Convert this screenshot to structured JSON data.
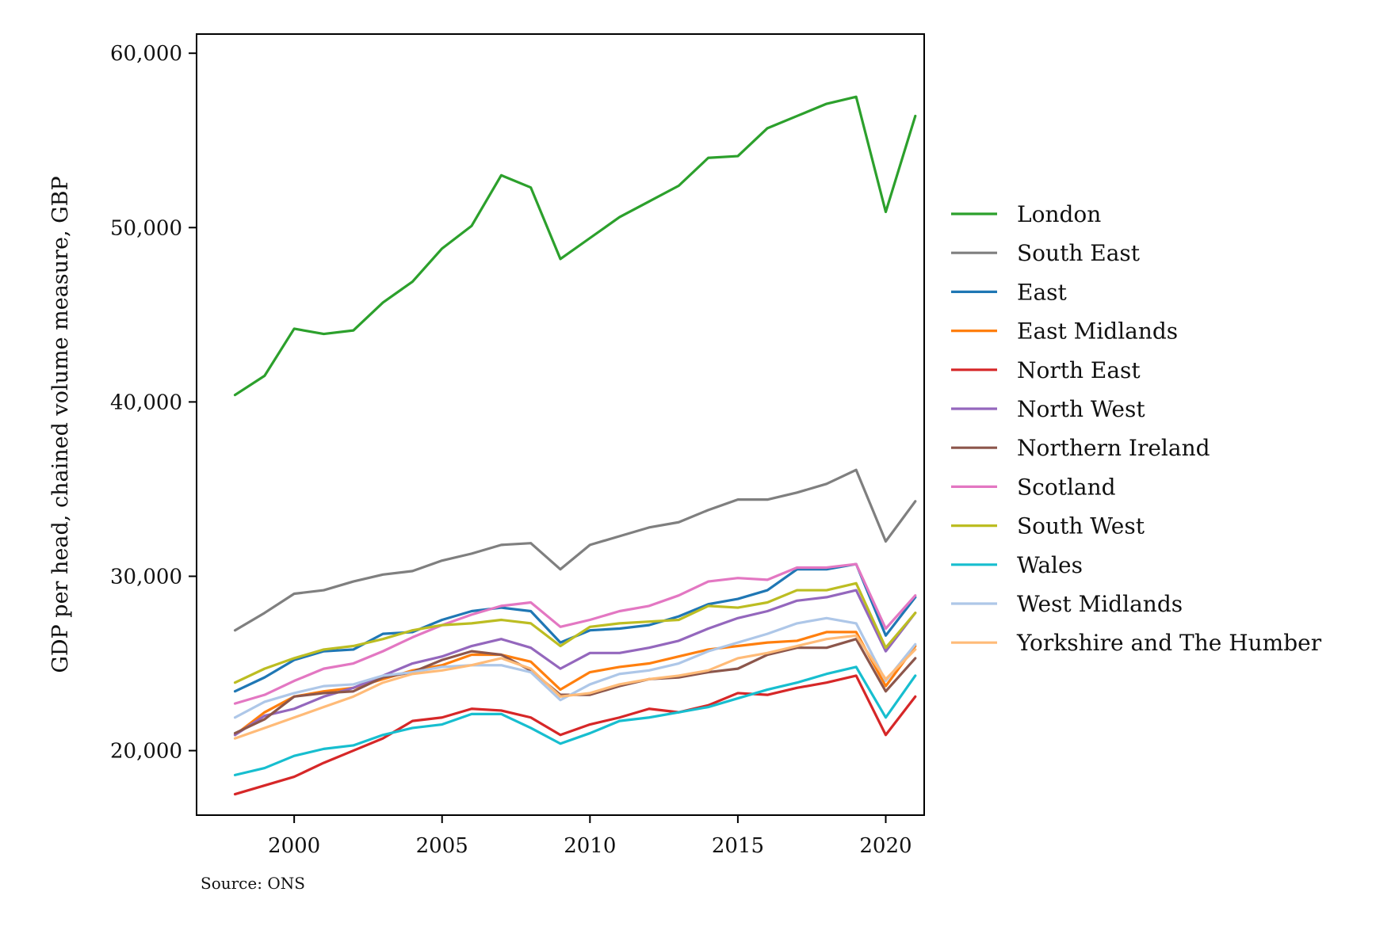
{
  "chart_data": {
    "type": "line",
    "title": "",
    "xlabel": "",
    "ylabel": "GDP per head, chained volume measure, GBP",
    "source": "Source: ONS",
    "x": [
      1998,
      1999,
      2000,
      2001,
      2002,
      2003,
      2004,
      2005,
      2006,
      2007,
      2008,
      2009,
      2010,
      2011,
      2012,
      2013,
      2014,
      2015,
      2016,
      2017,
      2018,
      2019,
      2020,
      2021
    ],
    "xlim": [
      1996.7,
      2021.3
    ],
    "ylim": [
      16300,
      61100
    ],
    "x_ticks": [
      2000,
      2005,
      2010,
      2015,
      2020
    ],
    "x_tick_labels": [
      "2000",
      "2005",
      "2010",
      "2015",
      "2020"
    ],
    "y_ticks": [
      20000,
      30000,
      40000,
      50000,
      60000
    ],
    "y_tick_labels": [
      "20,000",
      "30,000",
      "40,000",
      "50,000",
      "60,000"
    ],
    "grid": false,
    "legend_position": "right",
    "series": [
      {
        "name": "London",
        "color": "#2ca02c",
        "values": [
          40400,
          41500,
          44200,
          43900,
          44100,
          45700,
          46900,
          48800,
          50100,
          53000,
          52300,
          48200,
          49400,
          50600,
          51500,
          52400,
          54000,
          54100,
          55700,
          56400,
          57100,
          57500,
          50900,
          56400
        ]
      },
      {
        "name": "South East",
        "color": "#7f7f7f",
        "values": [
          26900,
          27900,
          29000,
          29200,
          29700,
          30100,
          30300,
          30900,
          31300,
          31800,
          31900,
          30400,
          31800,
          32300,
          32800,
          33100,
          33800,
          34400,
          34400,
          34800,
          35300,
          36100,
          32000,
          34300
        ]
      },
      {
        "name": "East",
        "color": "#1f77b4",
        "values": [
          23400,
          24200,
          25200,
          25700,
          25800,
          26700,
          26800,
          27500,
          28000,
          28200,
          28000,
          26200,
          26900,
          27000,
          27200,
          27700,
          28400,
          28700,
          29200,
          30400,
          30400,
          30700,
          26600,
          28800
        ]
      },
      {
        "name": "East Midlands",
        "color": "#ff7f0e",
        "values": [
          20900,
          22200,
          23100,
          23400,
          23600,
          24100,
          24600,
          24900,
          25500,
          25500,
          25100,
          23500,
          24500,
          24800,
          25000,
          25400,
          25800,
          26000,
          26200,
          26300,
          26800,
          26800,
          23700,
          26000
        ]
      },
      {
        "name": "North East",
        "color": "#d62728",
        "values": [
          17500,
          18000,
          18500,
          19300,
          20000,
          20700,
          21700,
          21900,
          22400,
          22300,
          21900,
          20900,
          21500,
          21900,
          22400,
          22200,
          22600,
          23300,
          23200,
          23600,
          23900,
          24300,
          20900,
          23100
        ]
      },
      {
        "name": "North West",
        "color": "#9467bd",
        "values": [
          20900,
          22000,
          22400,
          23100,
          23600,
          24300,
          25000,
          25400,
          26000,
          26400,
          25900,
          24700,
          25600,
          25600,
          25900,
          26300,
          27000,
          27600,
          28000,
          28600,
          28800,
          29200,
          25700,
          27900
        ]
      },
      {
        "name": "Northern Ireland",
        "color": "#8c564b",
        "values": [
          21000,
          21800,
          23100,
          23300,
          23400,
          24200,
          24500,
          25200,
          25700,
          25500,
          24600,
          23200,
          23200,
          23700,
          24100,
          24200,
          24500,
          24700,
          25500,
          25900,
          25900,
          26400,
          23400,
          25300
        ]
      },
      {
        "name": "Scotland",
        "color": "#e377c2",
        "values": [
          22700,
          23200,
          24000,
          24700,
          25000,
          25700,
          26500,
          27200,
          27800,
          28300,
          28500,
          27100,
          27500,
          28000,
          28300,
          28900,
          29700,
          29900,
          29800,
          30500,
          30500,
          30700,
          27000,
          28900
        ]
      },
      {
        "name": "South West",
        "color": "#bcbd22",
        "values": [
          23900,
          24700,
          25300,
          25800,
          26000,
          26400,
          26900,
          27200,
          27300,
          27500,
          27300,
          26000,
          27100,
          27300,
          27400,
          27500,
          28300,
          28200,
          28500,
          29200,
          29200,
          29600,
          25900,
          27900
        ]
      },
      {
        "name": "Wales",
        "color": "#17becf",
        "values": [
          18600,
          19000,
          19700,
          20100,
          20300,
          20900,
          21300,
          21500,
          22100,
          22100,
          21300,
          20400,
          21000,
          21700,
          21900,
          22200,
          22500,
          23000,
          23500,
          23900,
          24400,
          24800,
          21900,
          24300
        ]
      },
      {
        "name": "West Midlands",
        "color": "#aec7e8",
        "values": [
          21900,
          22800,
          23300,
          23700,
          23800,
          24300,
          24500,
          24800,
          24900,
          24900,
          24500,
          22900,
          23800,
          24400,
          24600,
          25000,
          25700,
          26200,
          26700,
          27300,
          27600,
          27300,
          24000,
          26100
        ]
      },
      {
        "name": "Yorkshire and The Humber",
        "color": "#ffbb78",
        "values": [
          20700,
          21300,
          21900,
          22500,
          23100,
          23900,
          24400,
          24600,
          24900,
          25300,
          24700,
          23100,
          23300,
          23800,
          24100,
          24300,
          24600,
          25300,
          25600,
          26000,
          26400,
          26600,
          24100,
          25800
        ]
      }
    ]
  }
}
